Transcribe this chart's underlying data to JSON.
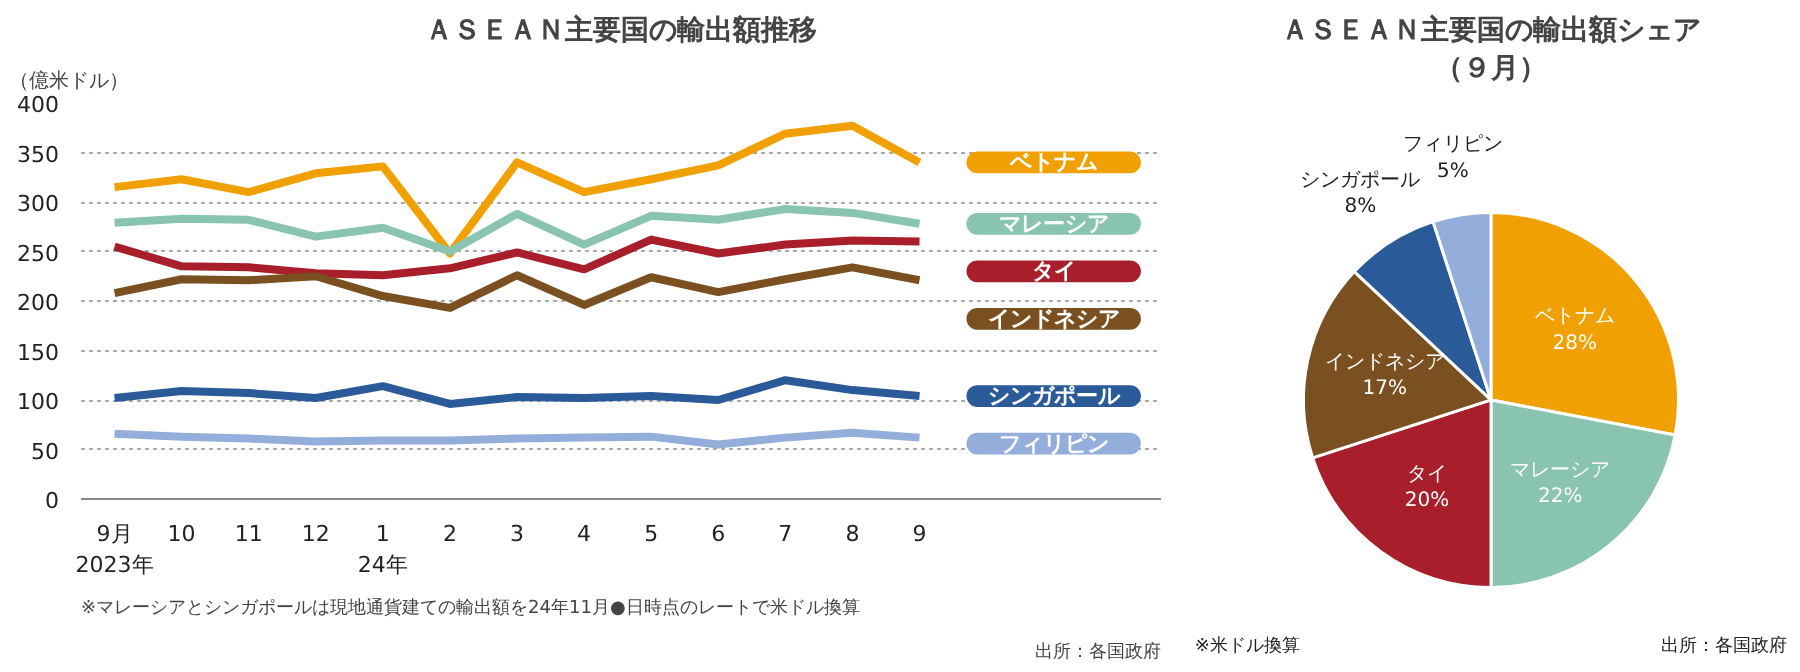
{
  "chart_data": [
    {
      "type": "line",
      "title": "ＡＳＥＡＮ主要国の輸出額推移",
      "ylabel": "（億米ドル）",
      "categories": [
        "9月\n2023年",
        "10",
        "11",
        "12",
        "1\n24年",
        "2",
        "3",
        "4",
        "5",
        "6",
        "7",
        "8",
        "9"
      ],
      "ylim": [
        0,
        400
      ],
      "yticks": [
        0,
        50,
        100,
        150,
        200,
        250,
        300,
        350,
        400
      ],
      "grid": "y",
      "legend": "right",
      "series": [
        {
          "name": "ベトナム",
          "color": "#f0a000",
          "values": [
            315,
            323,
            310,
            329,
            336,
            248,
            340,
            310,
            323,
            337,
            369,
            377,
            340
          ]
        },
        {
          "name": "マレーシア",
          "color": "#88c4b0",
          "values": [
            279,
            283,
            282,
            265,
            274,
            250,
            288,
            257,
            286,
            282,
            293,
            289,
            278
          ]
        },
        {
          "name": "タイ",
          "color": "#a81e2a",
          "values": [
            255,
            235,
            234,
            228,
            226,
            233,
            249,
            232,
            262,
            248,
            257,
            261,
            260
          ]
        },
        {
          "name": "インドネシア",
          "color": "#7a5020",
          "values": [
            208,
            222,
            221,
            225,
            205,
            193,
            226,
            196,
            224,
            209,
            222,
            234,
            221
          ]
        },
        {
          "name": "シンガポール",
          "color": "#2a5a98",
          "values": [
            102,
            109,
            107,
            102,
            114,
            96,
            103,
            102,
            104,
            100,
            120,
            110,
            104
          ]
        },
        {
          "name": "フィリピン",
          "color": "#94aedc",
          "values": [
            66,
            63,
            61,
            58,
            59,
            59,
            61,
            62,
            63,
            55,
            62,
            67,
            62
          ]
        }
      ],
      "annotations": [
        "※マレーシアとシンガポールは現地通貨建ての輸出額を24年11月●日時点のレートで米ドル換算",
        "出所：各国政府"
      ]
    },
    {
      "type": "pie",
      "title": "ＡＳＥＡＮ主要国の輸出額シェア（９月）",
      "categories": [
        "ベトナム",
        "マレーシア",
        "タイ",
        "インドネシア",
        "シンガポール",
        "フィリピン"
      ],
      "values": [
        28,
        22,
        20,
        17,
        8,
        5
      ],
      "colors": [
        "#f0a000",
        "#88c4b0",
        "#a81e2a",
        "#7a5020",
        "#2a5a98",
        "#94aedc"
      ],
      "value_labels": [
        "28%",
        "22%",
        "20%",
        "17%",
        "8%",
        "5%"
      ],
      "annotations": [
        "※米ドル換算",
        "出所：各国政府"
      ]
    }
  ]
}
